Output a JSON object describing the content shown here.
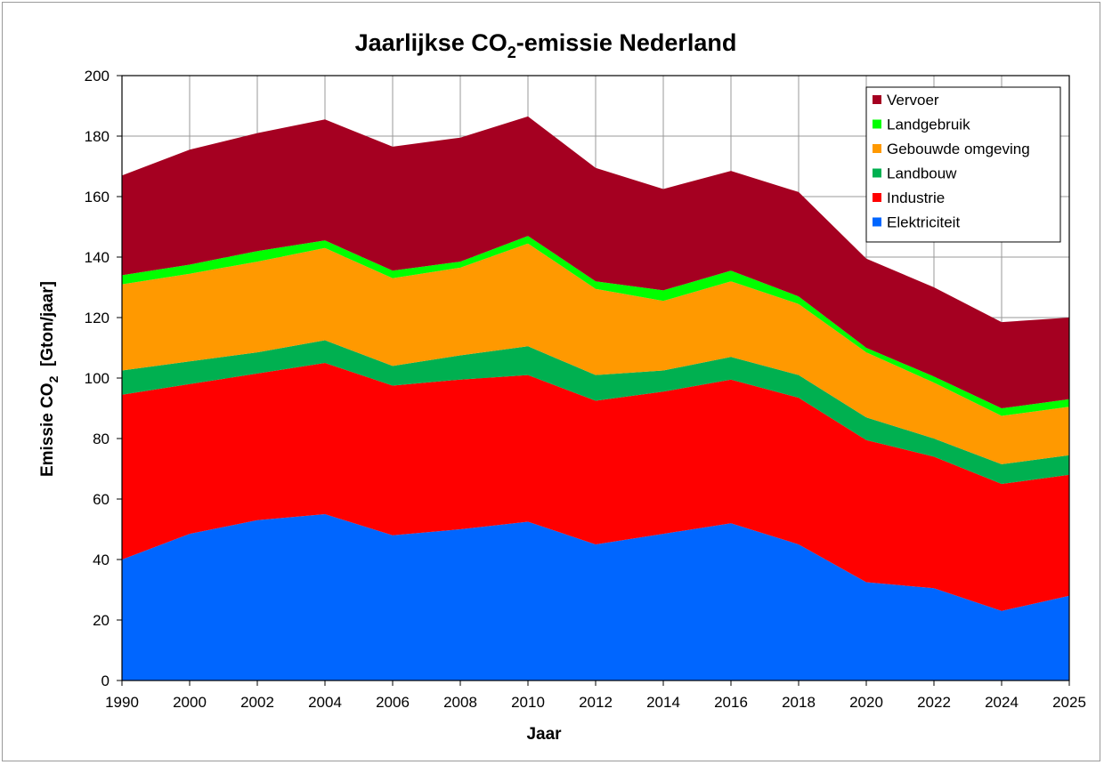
{
  "chart_data": {
    "type": "area",
    "stacked": true,
    "title_parts": {
      "pre": "Jaarlijkse CO",
      "sub": "2",
      "post": "-emissie Nederland"
    },
    "xlabel": "Jaar",
    "ylabel_parts": {
      "pre": "Emissie CO",
      "sub": "2",
      "post": "  [Gton/jaar]"
    },
    "ylim": [
      0,
      200
    ],
    "yticks": [
      "0",
      "20",
      "40",
      "60",
      "80",
      "100",
      "120",
      "140",
      "160",
      "180",
      "200"
    ],
    "categories": [
      "1990",
      "2000",
      "2002",
      "2004",
      "2006",
      "2008",
      "2010",
      "2012",
      "2014",
      "2016",
      "2018",
      "2020",
      "2022",
      "2024",
      "2025"
    ],
    "grid": true,
    "legend_position": "top-right",
    "series": [
      {
        "name": "Elektriciteit",
        "color": "#0066ff",
        "values": [
          40,
          48.5,
          53,
          55,
          48,
          50,
          52.5,
          45,
          48.5,
          52,
          45,
          32.5,
          30.5,
          23,
          28
        ]
      },
      {
        "name": "Industrie",
        "color": "#ff0000",
        "values": [
          54.5,
          49.5,
          48.5,
          50,
          49.5,
          49.5,
          48.5,
          47.5,
          47,
          47.5,
          48.5,
          47,
          43.5,
          42,
          40
        ]
      },
      {
        "name": "Landbouw",
        "color": "#00b050",
        "values": [
          8,
          7.5,
          7,
          7.5,
          6.5,
          8,
          9.5,
          8.5,
          7,
          7.5,
          7.5,
          7.5,
          6,
          6.5,
          6.5
        ]
      },
      {
        "name": "Gebouwde omgeving",
        "color": "#ff9900",
        "values": [
          28.5,
          29,
          30,
          30.5,
          29,
          29,
          34,
          28.5,
          23,
          25,
          23.5,
          21.5,
          18.5,
          16,
          16
        ]
      },
      {
        "name": "Landgebruik",
        "color": "#00ff00",
        "values": [
          3,
          3,
          3.5,
          2.5,
          2.5,
          2,
          2.5,
          2.5,
          3.5,
          3.5,
          2.5,
          1.5,
          2,
          2.5,
          2.5
        ]
      },
      {
        "name": "Vervoer",
        "color": "#a50021",
        "values": [
          33,
          38,
          39,
          40,
          41,
          41,
          39.5,
          37.5,
          33.5,
          33,
          34.5,
          29.5,
          29.5,
          28.5,
          27
        ]
      }
    ]
  }
}
